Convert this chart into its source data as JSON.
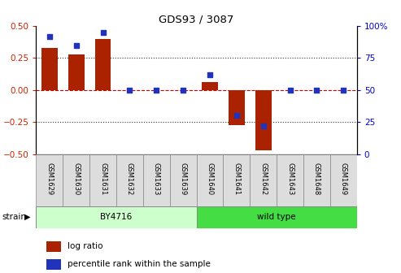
{
  "title": "GDS93 / 3087",
  "samples": [
    "GSM1629",
    "GSM1630",
    "GSM1631",
    "GSM1632",
    "GSM1633",
    "GSM1639",
    "GSM1640",
    "GSM1641",
    "GSM1642",
    "GSM1643",
    "GSM1648",
    "GSM1649"
  ],
  "log_ratio": [
    0.33,
    0.28,
    0.4,
    0.0,
    0.0,
    0.0,
    0.06,
    -0.27,
    -0.47,
    0.0,
    0.0,
    0.0
  ],
  "percentile": [
    92,
    85,
    95,
    50,
    50,
    50,
    62,
    30,
    22,
    50,
    50,
    50
  ],
  "bar_color": "#aa2200",
  "dot_color": "#2233bb",
  "ylim": [
    -0.5,
    0.5
  ],
  "y2lim": [
    0,
    100
  ],
  "yticks": [
    -0.5,
    -0.25,
    0.0,
    0.25,
    0.5
  ],
  "y2ticks": [
    0,
    25,
    50,
    75,
    100
  ],
  "hline_color": "#cc0000",
  "dotted_color": "#333333",
  "strain_groups": [
    {
      "label": "BY4716",
      "start": 0,
      "end": 5,
      "color": "#ccffcc"
    },
    {
      "label": "wild type",
      "start": 6,
      "end": 11,
      "color": "#44dd44"
    }
  ],
  "strain_label": "strain",
  "legend_log_ratio": "log ratio",
  "legend_percentile": "percentile rank within the sample",
  "tick_label_color_left": "#cc2200",
  "tick_label_color_right": "#0000cc",
  "xtick_bg": "#dddddd"
}
